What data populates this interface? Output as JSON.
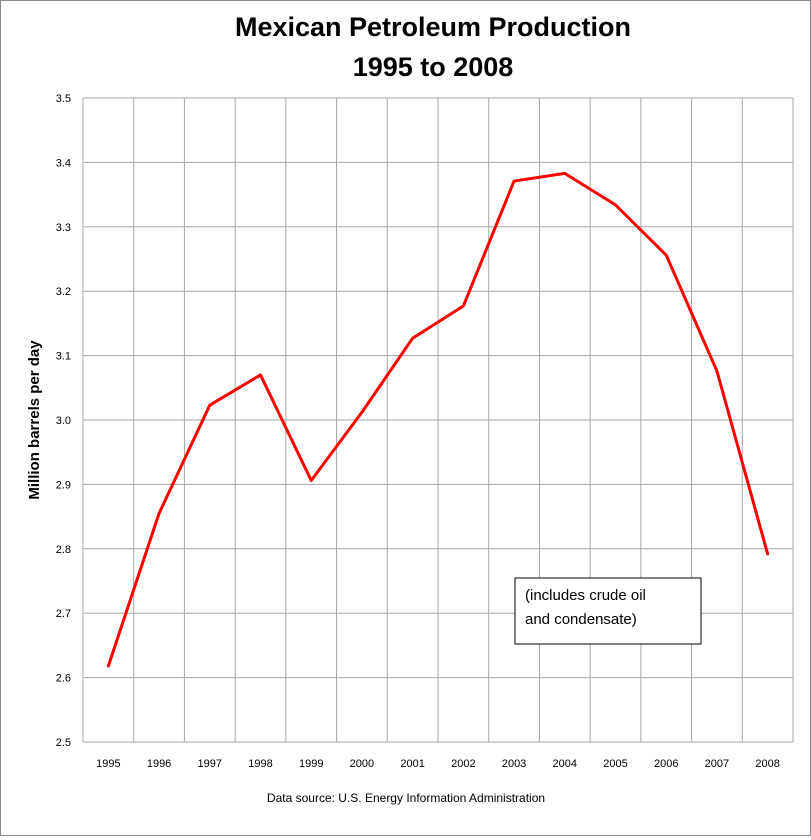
{
  "chart_data": {
    "type": "line",
    "title_line1": "Mexican Petroleum Production",
    "title_line2": "1995 to 2008",
    "xlabel": "",
    "ylabel": "Million barrels per day",
    "source": "Data source: U.S. Energy Information Administration",
    "note_line1": "(includes crude oil",
    "note_line2": "and condensate)",
    "categories": [
      "1995",
      "1996",
      "1997",
      "1998",
      "1999",
      "2000",
      "2001",
      "2002",
      "2003",
      "2004",
      "2005",
      "2006",
      "2007",
      "2008"
    ],
    "values": [
      2.618,
      2.855,
      3.023,
      3.07,
      2.906,
      3.012,
      3.127,
      3.177,
      3.371,
      3.383,
      3.334,
      3.256,
      3.076,
      2.792
    ],
    "ylim": [
      2.5,
      3.5
    ],
    "yticks": [
      "2.5",
      "2.6",
      "2.7",
      "2.8",
      "2.9",
      "3.0",
      "3.1",
      "3.2",
      "3.3",
      "3.4",
      "3.5"
    ],
    "grid": true,
    "line_color": "#ff0000",
    "grid_color": "#a6a6a6"
  }
}
